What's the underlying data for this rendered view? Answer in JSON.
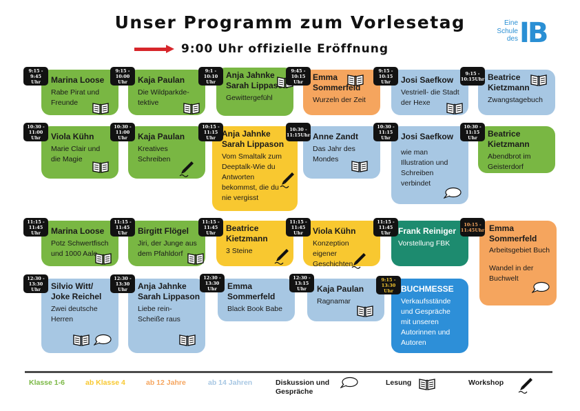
{
  "header": {
    "title": "Unser Programm zum Vorlesetag",
    "opening": "9:00 Uhr offizielle Eröffnung",
    "logo_text": [
      "Eine",
      "Schule",
      "des"
    ],
    "logo_mark": "IB"
  },
  "colors": {
    "green": "#79b743",
    "yellow": "#f8c830",
    "orange": "#f5a55e",
    "blue": "#a7c7e3",
    "teal": "#1d8b6f",
    "darkblue": "#2d8fd8",
    "arrow": "#d7262b"
  },
  "sessions": [
    {
      "time": [
        "9:15 -",
        "9:45 Uhr"
      ],
      "name": [
        "Marina Loose"
      ],
      "desc": [
        "Rabe Pirat und",
        "Freunde"
      ],
      "color": "green",
      "icons": [
        "book-icon"
      ]
    },
    {
      "time": [
        "9:15 -",
        "10:00 Uhr"
      ],
      "name": [
        "Kaja Paulan"
      ],
      "desc": [
        "Die Wildparkde-",
        "tektive"
      ],
      "color": "green",
      "icons": [
        "book-icon"
      ]
    },
    {
      "time": [
        "9:1 -",
        "10:10 Uhr"
      ],
      "name": [
        "Anja Jahnke",
        "Sarah Lippason"
      ],
      "desc": [
        "Gewittergefühl"
      ],
      "color": "green",
      "icons": [
        "book-icon"
      ]
    },
    {
      "time": [
        "9:45 -",
        "10:15 Uhr"
      ],
      "name": [
        "Emma",
        "Sommerfeld"
      ],
      "desc": [
        "Wurzeln der Zeit"
      ],
      "color": "orange",
      "icons": [
        "book-icon"
      ]
    },
    {
      "time": [
        "9:15 -",
        "10:15 Uhr"
      ],
      "name": [
        "Josi Saefkow"
      ],
      "desc": [
        "Vestriell- die Stadt",
        "der Hexe"
      ],
      "color": "blue",
      "icons": [
        "book-icon"
      ]
    },
    {
      "time": [
        "9:15 -",
        "10:15Uhr"
      ],
      "name": [
        "Beatrice",
        "Kietzmann"
      ],
      "desc": [
        "Zwangstagebuch"
      ],
      "color": "blue",
      "icons": [
        "book-icon"
      ]
    },
    {
      "time": [
        "10:30 -",
        "11:00 Uhr"
      ],
      "name": [
        "Viola Kühn"
      ],
      "desc": [
        "Marie Clair und",
        "die Magie"
      ],
      "color": "green",
      "icons": [
        "book-icon"
      ]
    },
    {
      "time": [
        "10:30 -",
        "11:00 Uhr"
      ],
      "name": [
        "Kaja Paulan"
      ],
      "desc": [
        "Kreatives",
        "Schreiben"
      ],
      "color": "green",
      "icons": [
        "pencil-icon"
      ]
    },
    {
      "time": [
        "10:15 -",
        "11:15 Uhr"
      ],
      "name": [
        "Anja Jahnke",
        "Sarah Lippason"
      ],
      "desc": [
        "Vom Smaltalk zum",
        "Deeptalk-Wie du",
        "Antworten",
        "bekommst, die du",
        "nie vergisst"
      ],
      "color": "yellow",
      "icons": [
        "pencil-icon"
      ]
    },
    {
      "time": [
        "10:30 -",
        "11:15Uhr"
      ],
      "name": [
        "Anne Zandt"
      ],
      "desc": [
        "Das Jahr des",
        "Mondes"
      ],
      "color": "blue",
      "icons": [
        "book-icon"
      ]
    },
    {
      "time": [
        "10:30 -",
        "11:15 Uhr"
      ],
      "name": [
        "Josi Saefkow"
      ],
      "desc": [
        "wie man",
        "Illustration und",
        "Schreiben",
        "verbindet"
      ],
      "color": "blue",
      "icons": [
        "speech-bubble-icon"
      ]
    },
    {
      "time": [
        "10:30 -",
        "11:15 Uhr"
      ],
      "name": [
        "Beatrice",
        "Kietzmann"
      ],
      "desc": [
        "Abendbrot im",
        "Geisterdorf"
      ],
      "color": "green",
      "icons": []
    },
    {
      "time": [
        "11:15 -",
        "11:45 Uhr"
      ],
      "name": [
        "Marina Loose"
      ],
      "desc": [
        "Potz Schwertfisch",
        "und 1000 Aale"
      ],
      "color": "green",
      "icons": [
        "book-icon"
      ]
    },
    {
      "time": [
        "11:15 -",
        "11:45 Uhr"
      ],
      "name": [
        "Birgitt Flögel"
      ],
      "desc": [
        "Jiri, der Junge aus",
        "dem Pfahldorf"
      ],
      "color": "green",
      "icons": [
        "book-icon"
      ]
    },
    {
      "time": [
        "11:15 -",
        "11:45 Uhr"
      ],
      "name": [
        "Beatrice",
        "Kietzmann"
      ],
      "desc": [
        "3 Steine"
      ],
      "color": "yellow",
      "icons": [
        "pencil-icon"
      ]
    },
    {
      "time": [
        "11:15 -",
        "11:45 Uhr"
      ],
      "name": [
        "Viola Kühn"
      ],
      "desc": [
        "Konzeption eigener",
        "Geschichten"
      ],
      "color": "yellow",
      "icons": [
        "pencil-icon"
      ]
    },
    {
      "time": [
        "11:15 -",
        "11:45 Uhr"
      ],
      "name": [
        "Frank Reiniger"
      ],
      "desc": [
        "Vorstellung FBK"
      ],
      "color": "teal",
      "icons": []
    },
    {
      "time": [
        "10:15 -",
        "11:45Uhr"
      ],
      "name": [
        "Emma",
        "Sommerfeld"
      ],
      "desc": [
        "Arbeitsgebiet Buch",
        "",
        "Wandel in der",
        "Buchwelt"
      ],
      "color": "orange",
      "icons": [
        "speech-bubble-icon"
      ]
    },
    {
      "time": [
        "12:30 -",
        "13:30 Uhr"
      ],
      "name": [
        "Silvio Witt/",
        "Joke Reichel"
      ],
      "desc": [
        "Zwei deutsche",
        "Herren"
      ],
      "color": "blue",
      "icons": [
        "book-icon",
        "speech-bubble-icon"
      ]
    },
    {
      "time": [
        "12:30 -",
        "13:30 Uhr"
      ],
      "name": [
        "Anja Jahnke",
        "Sarah Lippason"
      ],
      "desc": [
        "Liebe rein-",
        "Scheiße raus"
      ],
      "color": "blue",
      "icons": [
        "book-icon"
      ]
    },
    {
      "time": [
        "12:30 -",
        "13:30 Uhr"
      ],
      "name": [
        "Emma",
        "Sommerfeld"
      ],
      "desc": [
        "Black Book Babe"
      ],
      "color": "blue",
      "icons": []
    },
    {
      "time": [
        "12:30 -",
        "13:15 Uhr"
      ],
      "name": [
        "Kaja Paulan"
      ],
      "desc": [
        "Ragnamar"
      ],
      "color": "blue",
      "icons": [
        "book-icon"
      ]
    },
    {
      "time": [
        "9:15 -",
        "13:30 Uhr"
      ],
      "name": [
        "BUCHMESSE"
      ],
      "desc": [
        "Verkaufsstände",
        "und Gespräche",
        "mit unseren",
        "Autorinnen und",
        "Autoren"
      ],
      "color": "darkblue",
      "icons": []
    }
  ],
  "legend": {
    "age_groups": [
      {
        "label": "Klasse 1-6",
        "color": "#79b743"
      },
      {
        "label": "ab Klasse 4",
        "color": "#f8c830"
      },
      {
        "label": "ab 12 Jahre",
        "color": "#f5a55e"
      },
      {
        "label": "ab 14 Jahren",
        "color": "#a7c7e3"
      }
    ],
    "formats": [
      {
        "label": [
          "Diskussion und",
          "Gespräche"
        ],
        "icon": "speech-bubble-icon"
      },
      {
        "label": [
          "Lesung"
        ],
        "icon": "book-icon"
      },
      {
        "label": [
          "Workshop"
        ],
        "icon": "pencil-icon"
      }
    ]
  }
}
